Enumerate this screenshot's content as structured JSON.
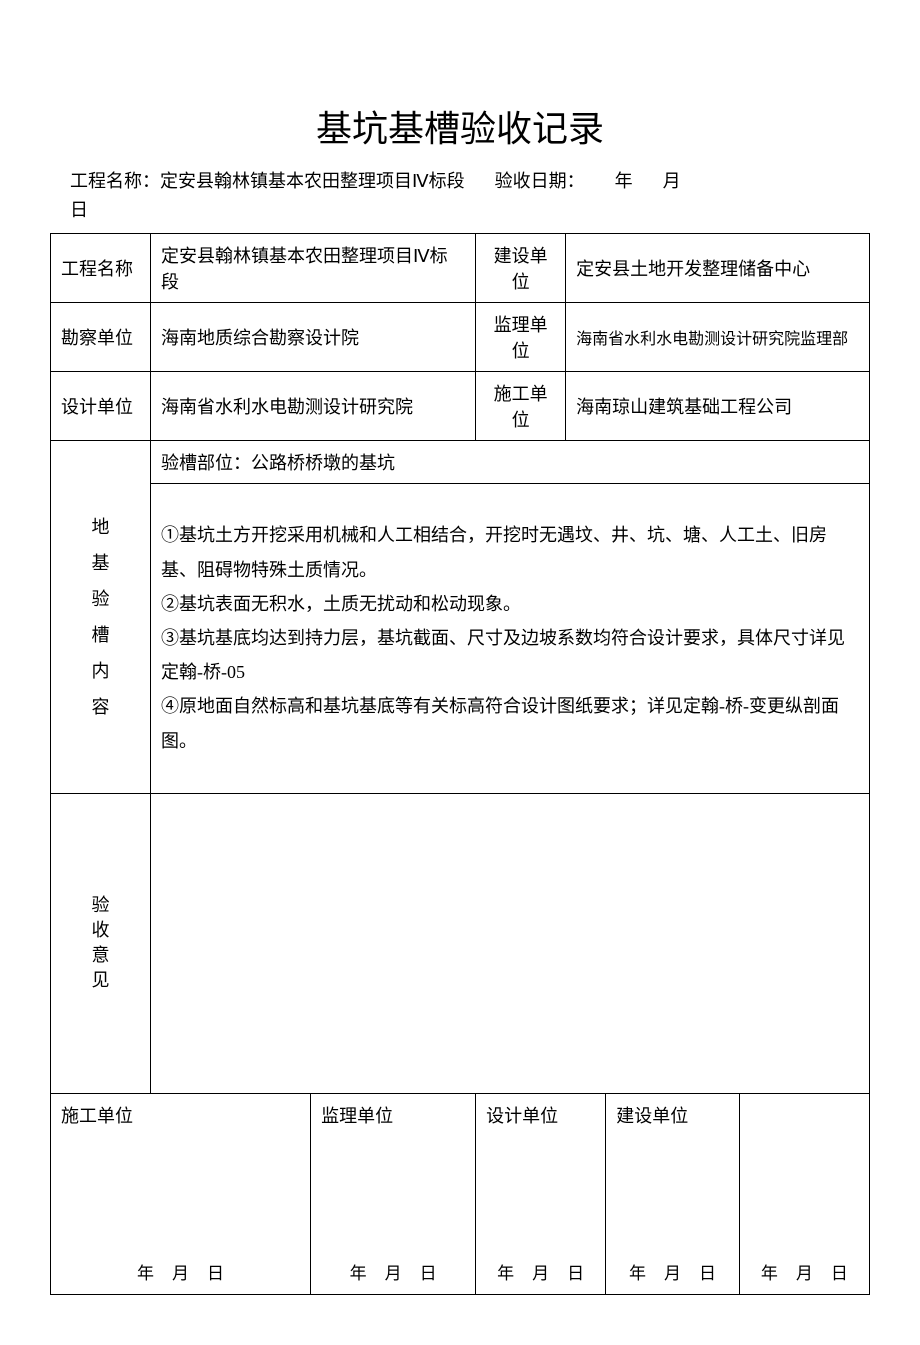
{
  "title": "基坑基槽验收记录",
  "header": {
    "project_label": "工程名称：",
    "project_value": "定安县翰林镇基本农田整理项目Ⅳ标段",
    "date_label": "验收日期：",
    "year": "年",
    "month": "月",
    "day": "日"
  },
  "info": {
    "project_label": "工程名称",
    "project_value": "定安县翰林镇基本农田整理项目Ⅳ标段",
    "build_unit_label": "建设单位",
    "build_unit_value": "定安县土地开发整理储备中心",
    "survey_unit_label": "勘察单位",
    "survey_unit_value": "海南地质综合勘察设计院",
    "supervise_unit_label": "监理单位",
    "supervise_unit_value": "海南省水利水电勘测设计研究院监理部",
    "design_unit_label": "设计单位",
    "design_unit_value": "海南省水利水电勘测设计研究院",
    "construct_unit_label": "施工单位",
    "construct_unit_value": "海南琼山建筑基础工程公司"
  },
  "content": {
    "section_label": "地基验槽内容",
    "location_label": "验槽部位：公路桥桥墩的基坑",
    "item1": "①基坑土方开挖采用机械和人工相结合，开挖时无遇坟、井、坑、塘、人工土、旧房基、阻碍物特殊土质情况。",
    "item2": "②基坑表面无积水，土质无扰动和松动现象。",
    "item3": "③基坑基底均达到持力层，基坑截面、尺寸及边坡系数均符合设计要求，具体尺寸详见定翰-桥-05",
    "item4": "④原地面自然标高和基坑基底等有关标高符合设计图纸要求；详见定翰-桥-变更纵剖面图。"
  },
  "opinion": {
    "label_c1": "验",
    "label_c2": "收",
    "label_c3": "意",
    "label_c4": "见"
  },
  "signatures": {
    "construct": "施工单位",
    "supervise": "监理单位",
    "design": "设计单位",
    "build": "建设单位",
    "year": "年",
    "month": "月",
    "day": "日"
  }
}
